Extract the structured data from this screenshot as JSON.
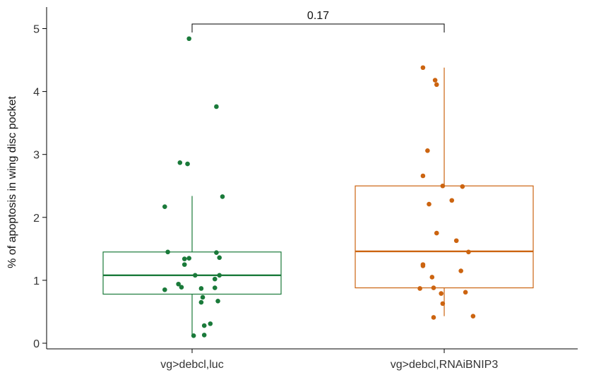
{
  "chart_data": {
    "type": "box",
    "ylabel": "% of apoptosis in wing disc pocket",
    "xlabel": "",
    "ylim": [
      -0.1,
      5.1
    ],
    "yticks": [
      0,
      1,
      2,
      3,
      4,
      5
    ],
    "grid": false,
    "legend": "none",
    "categories": [
      "vg>debcl,luc",
      "vg>debcl,RNAiBNIP3"
    ],
    "series": [
      {
        "color": "#1a7a3a",
        "box": {
          "q1": 0.78,
          "median": 1.08,
          "q3": 1.45,
          "whisker_low": 0.12,
          "whisker_high": 2.34
        },
        "points": [
          {
            "dx": -0.02,
            "y": 4.84
          },
          {
            "dx": 0.16,
            "y": 3.76
          },
          {
            "dx": -0.08,
            "y": 2.87
          },
          {
            "dx": -0.03,
            "y": 2.85
          },
          {
            "dx": 0.2,
            "y": 2.33
          },
          {
            "dx": -0.18,
            "y": 2.17
          },
          {
            "dx": -0.16,
            "y": 1.45
          },
          {
            "dx": 0.16,
            "y": 1.44
          },
          {
            "dx": -0.02,
            "y": 1.35
          },
          {
            "dx": -0.05,
            "y": 1.34
          },
          {
            "dx": 0.18,
            "y": 1.36
          },
          {
            "dx": -0.05,
            "y": 1.25
          },
          {
            "dx": 0.02,
            "y": 1.08
          },
          {
            "dx": 0.18,
            "y": 1.08
          },
          {
            "dx": 0.15,
            "y": 1.02
          },
          {
            "dx": -0.09,
            "y": 0.94
          },
          {
            "dx": -0.07,
            "y": 0.89
          },
          {
            "dx": -0.18,
            "y": 0.85
          },
          {
            "dx": 0.06,
            "y": 0.87
          },
          {
            "dx": 0.15,
            "y": 0.88
          },
          {
            "dx": 0.07,
            "y": 0.73
          },
          {
            "dx": 0.06,
            "y": 0.65
          },
          {
            "dx": 0.17,
            "y": 0.67
          },
          {
            "dx": 0.12,
            "y": 0.31
          },
          {
            "dx": 0.08,
            "y": 0.28
          },
          {
            "dx": 0.01,
            "y": 0.12
          },
          {
            "dx": 0.08,
            "y": 0.13
          }
        ]
      },
      {
        "color": "#cc6410",
        "box": {
          "q1": 0.88,
          "median": 1.46,
          "q3": 2.5,
          "whisker_low": 0.43,
          "whisker_high": 4.38
        },
        "points": [
          {
            "dx": -0.14,
            "y": 4.38
          },
          {
            "dx": -0.06,
            "y": 4.18
          },
          {
            "dx": -0.05,
            "y": 4.11
          },
          {
            "dx": -0.11,
            "y": 3.06
          },
          {
            "dx": -0.14,
            "y": 2.66
          },
          {
            "dx": -0.01,
            "y": 2.5
          },
          {
            "dx": 0.12,
            "y": 2.49
          },
          {
            "dx": 0.05,
            "y": 2.27
          },
          {
            "dx": -0.1,
            "y": 2.21
          },
          {
            "dx": -0.05,
            "y": 1.75
          },
          {
            "dx": 0.08,
            "y": 1.63
          },
          {
            "dx": 0.16,
            "y": 1.45
          },
          {
            "dx": -0.14,
            "y": 1.25
          },
          {
            "dx": -0.14,
            "y": 1.23
          },
          {
            "dx": 0.11,
            "y": 1.15
          },
          {
            "dx": -0.08,
            "y": 1.05
          },
          {
            "dx": -0.16,
            "y": 0.87
          },
          {
            "dx": -0.07,
            "y": 0.88
          },
          {
            "dx": -0.02,
            "y": 0.79
          },
          {
            "dx": 0.14,
            "y": 0.81
          },
          {
            "dx": -0.01,
            "y": 0.63
          },
          {
            "dx": 0.19,
            "y": 0.43
          },
          {
            "dx": -0.07,
            "y": 0.41
          }
        ]
      }
    ],
    "annotation": {
      "text": "0.17",
      "from": 0,
      "to": 1,
      "y": 5.1
    }
  }
}
